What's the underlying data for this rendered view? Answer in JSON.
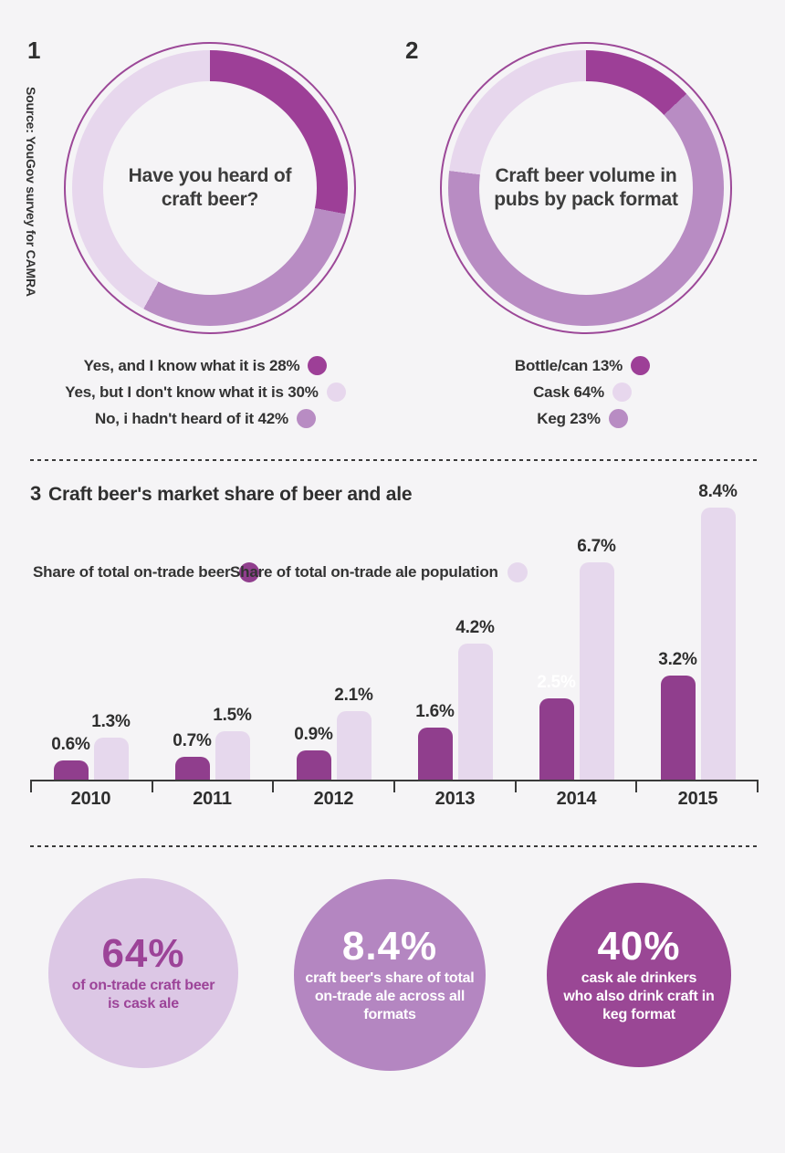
{
  "source_note": "Source: YouGov survey for CAMRA",
  "chart_numbers": [
    "1",
    "2",
    "3"
  ],
  "colors": {
    "background": "#f5f4f6",
    "dark_purple": "#9d3f97",
    "medium_purple": "#b88cc3",
    "light_lavender": "#e7d7ed",
    "ring_stroke": "#9c4898",
    "bar_dark": "#903e8d",
    "bar_light": "#e6d8ed",
    "axis": "#3a3a3a",
    "text_dark": "#333333",
    "white": "#ffffff",
    "circle1_bg": "#dcc7e5",
    "circle1_text": "#9c4398",
    "circle2_bg": "#b486c1",
    "circle3_bg": "#9a4795"
  },
  "chart_data": [
    {
      "id": "donut-heard-of-craft-beer",
      "type": "pie",
      "subtype": "donut",
      "number": "1",
      "center_label": "Have you heard of\ncraft beer?",
      "slices": [
        {
          "label": "Yes, and I know what it is",
          "value": 28,
          "arc_color": "dark_purple",
          "legend_color": "dark_purple"
        },
        {
          "label": "Yes, but I don't know what it is",
          "value": 30,
          "arc_color": "medium_purple",
          "legend_color": "light_lavender"
        },
        {
          "label": "No, i hadn't heard of it",
          "value": 42,
          "arc_color": "light_lavender",
          "legend_color": "medium_purple"
        }
      ]
    },
    {
      "id": "donut-craft-beer-volume-by-pack-format",
      "type": "pie",
      "subtype": "donut",
      "number": "2",
      "center_label": "Craft beer volume in\npubs by pack format",
      "slices": [
        {
          "label": "Bottle/can",
          "value": 13,
          "arc_color": "dark_purple",
          "legend_color": "dark_purple"
        },
        {
          "label": "Cask",
          "value": 64,
          "arc_color": "medium_purple",
          "legend_color": "light_lavender"
        },
        {
          "label": "Keg",
          "value": 23,
          "arc_color": "light_lavender",
          "legend_color": "medium_purple"
        }
      ]
    },
    {
      "id": "bar-craft-beer-market-share",
      "type": "bar",
      "number": "3",
      "title": "Craft beer's market share of beer and ale",
      "categories": [
        "2010",
        "2011",
        "2012",
        "2013",
        "2014",
        "2015"
      ],
      "series": [
        {
          "name": "Share of total on-trade beer",
          "color": "bar_dark",
          "values": [
            0.6,
            0.7,
            0.9,
            1.6,
            2.5,
            3.2
          ],
          "label_colors": [
            null,
            null,
            null,
            null,
            "#ffffff",
            null
          ]
        },
        {
          "name": "Share of total on-trade ale population",
          "color": "bar_light",
          "values": [
            1.3,
            1.5,
            2.1,
            4.2,
            6.7,
            8.4
          ],
          "label_colors": [
            null,
            null,
            null,
            null,
            null,
            null
          ]
        }
      ],
      "value_suffix": "%",
      "ylim": [
        0,
        8.4
      ],
      "grid": false,
      "legend_position": "top-left"
    }
  ],
  "stat_circles": [
    {
      "value": "64%",
      "description": "of on-trade craft beer\nis cask ale"
    },
    {
      "value": "8.4%",
      "description": "craft beer's share of total\non-trade ale across all\nformats"
    },
    {
      "value": "40%",
      "description": "cask ale drinkers\nwho also drink craft in\nkeg format"
    }
  ]
}
